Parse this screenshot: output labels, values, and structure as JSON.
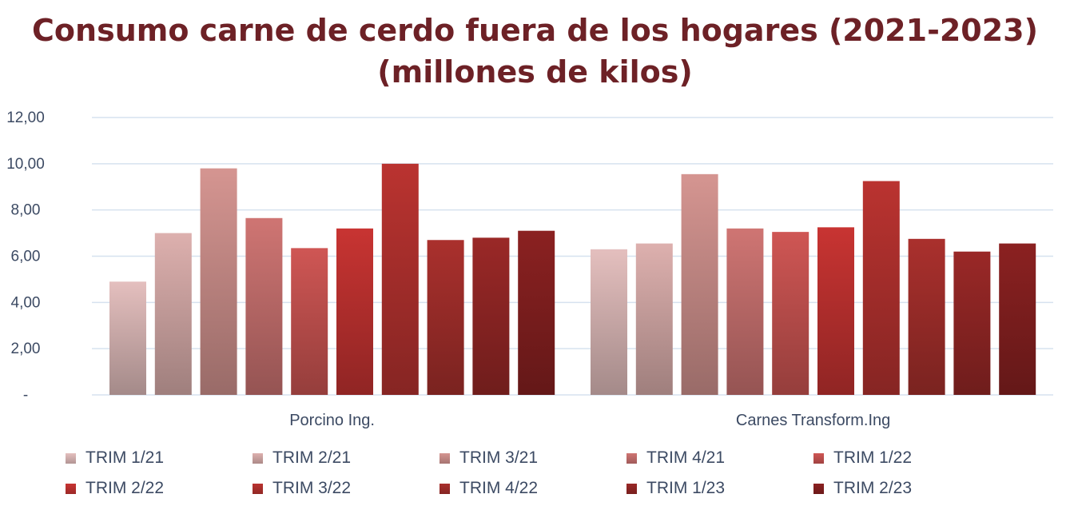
{
  "chart_data": {
    "type": "bar",
    "title": "Consumo carne de cerdo fuera de los hogares (2021-2023)",
    "subtitle": "(millones de kilos)",
    "xlabel": "",
    "ylabel": "",
    "ylim": [
      0,
      12
    ],
    "y_ticks": [
      "-",
      "2,00",
      "4,00",
      "6,00",
      "8,00",
      "10,00",
      "12,00"
    ],
    "y_tick_values": [
      0,
      2,
      4,
      6,
      8,
      10,
      12
    ],
    "grid": true,
    "legend_position": "bottom",
    "categories": [
      "Porcino Ing.",
      "Carnes Transform.Ing"
    ],
    "series": [
      {
        "name": "TRIM 1/21",
        "color": "#e4bfbe",
        "values": [
          4.9,
          6.3
        ]
      },
      {
        "name": "TRIM 2/21",
        "color": "#ddb0ae",
        "values": [
          7.0,
          6.55
        ]
      },
      {
        "name": "TRIM 3/21",
        "color": "#d59591",
        "values": [
          9.8,
          9.55
        ]
      },
      {
        "name": "TRIM 4/21",
        "color": "#cf7573",
        "values": [
          7.65,
          7.2
        ]
      },
      {
        "name": "TRIM 1/22",
        "color": "#cf5654",
        "values": [
          6.35,
          7.05
        ]
      },
      {
        "name": "TRIM 2/22",
        "color": "#c83432",
        "values": [
          7.2,
          7.25
        ]
      },
      {
        "name": "TRIM 3/22",
        "color": "#ba3330",
        "values": [
          10.0,
          9.25
        ]
      },
      {
        "name": "TRIM 4/22",
        "color": "#aa302d",
        "values": [
          6.7,
          6.75
        ]
      },
      {
        "name": "TRIM 1/23",
        "color": "#9a2827",
        "values": [
          6.8,
          6.2
        ]
      },
      {
        "name": "TRIM 2/23",
        "color": "#8b2121",
        "values": [
          7.1,
          6.55
        ]
      }
    ]
  }
}
